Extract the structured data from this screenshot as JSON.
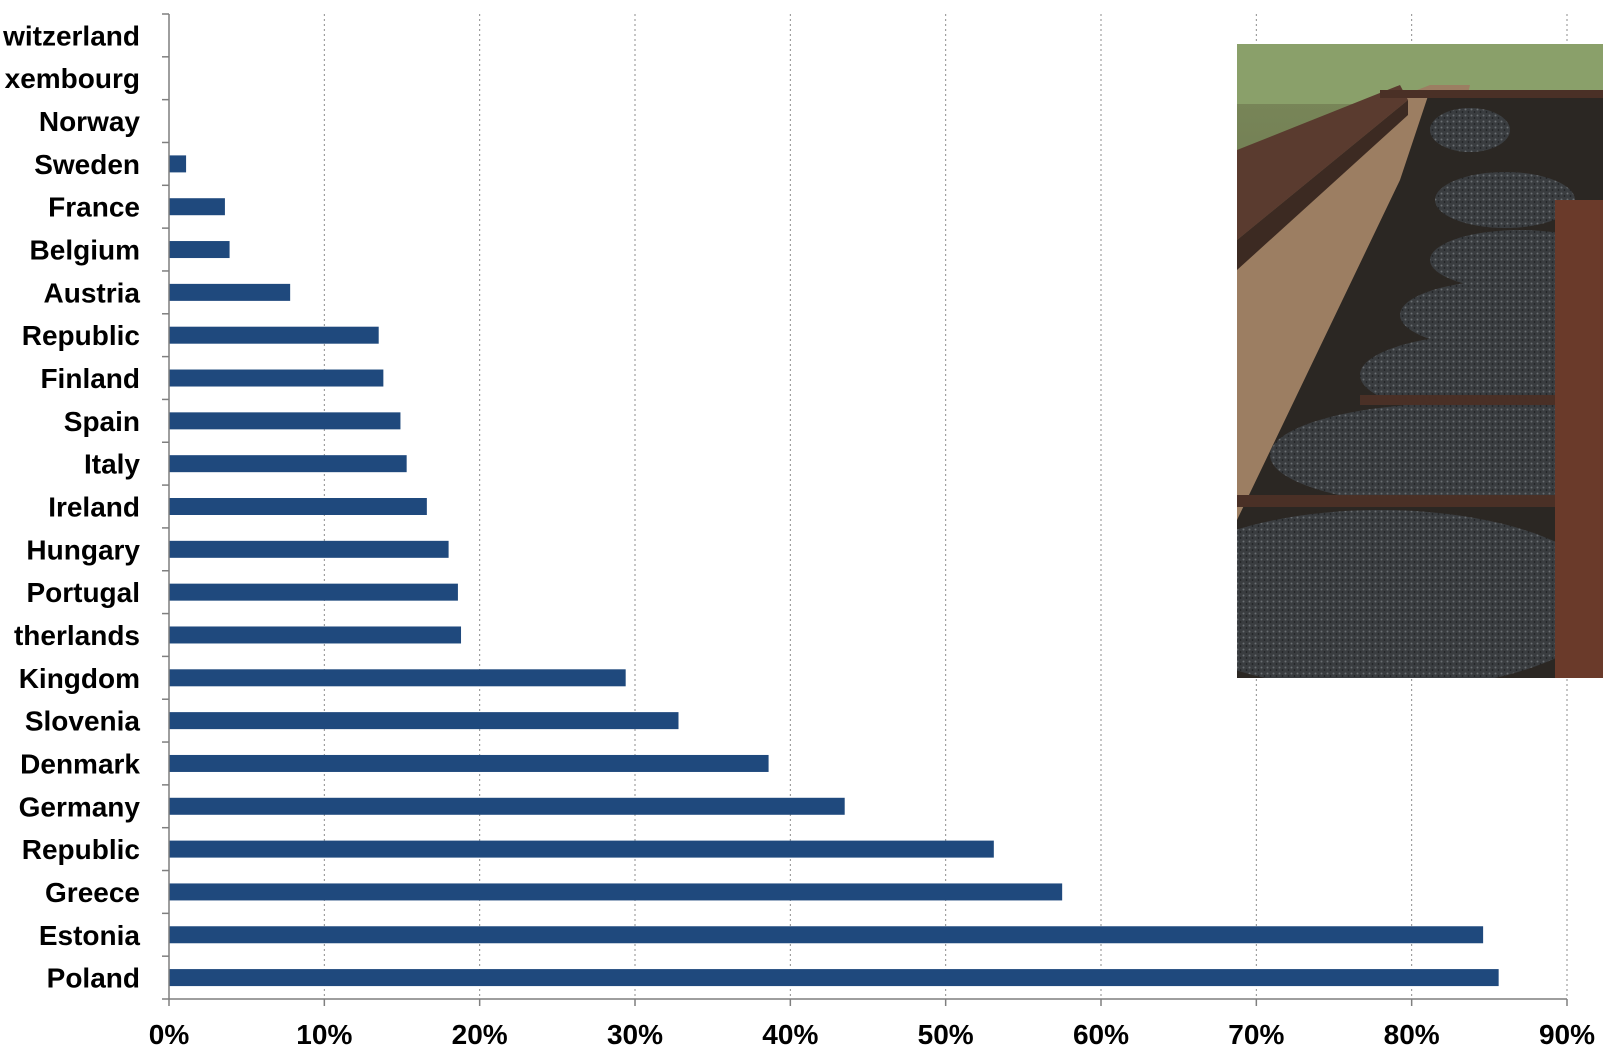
{
  "chart_data": {
    "type": "bar",
    "orientation": "horizontal",
    "title": "",
    "xlabel": "",
    "ylabel": "",
    "xlim": [
      0,
      90
    ],
    "x_tick_labels": [
      "0%",
      "10%",
      "20%",
      "30%",
      "40%",
      "50%",
      "60%",
      "70%",
      "80%",
      "90%"
    ],
    "grid": "vertical dotted",
    "bar_color": "#1f497d",
    "categories": [
      "witzerland",
      "xembourg",
      "Norway",
      "Sweden",
      "France",
      "Belgium",
      "Austria",
      "Republic",
      "Finland",
      "Spain",
      "Italy",
      "Ireland",
      "Hungary",
      "Portugal",
      "therlands",
      "Kingdom",
      "Slovenia",
      "Denmark",
      "Germany",
      "Republic",
      "Greece",
      "Estonia",
      "Poland"
    ],
    "values": [
      0,
      0,
      0,
      1.1,
      3.6,
      3.9,
      7.8,
      13.5,
      13.8,
      14.9,
      15.3,
      16.6,
      18.0,
      18.6,
      18.8,
      29.4,
      32.8,
      38.6,
      43.5,
      53.1,
      57.5,
      84.6,
      85.6
    ],
    "inset_image": "coal-train-photo"
  }
}
